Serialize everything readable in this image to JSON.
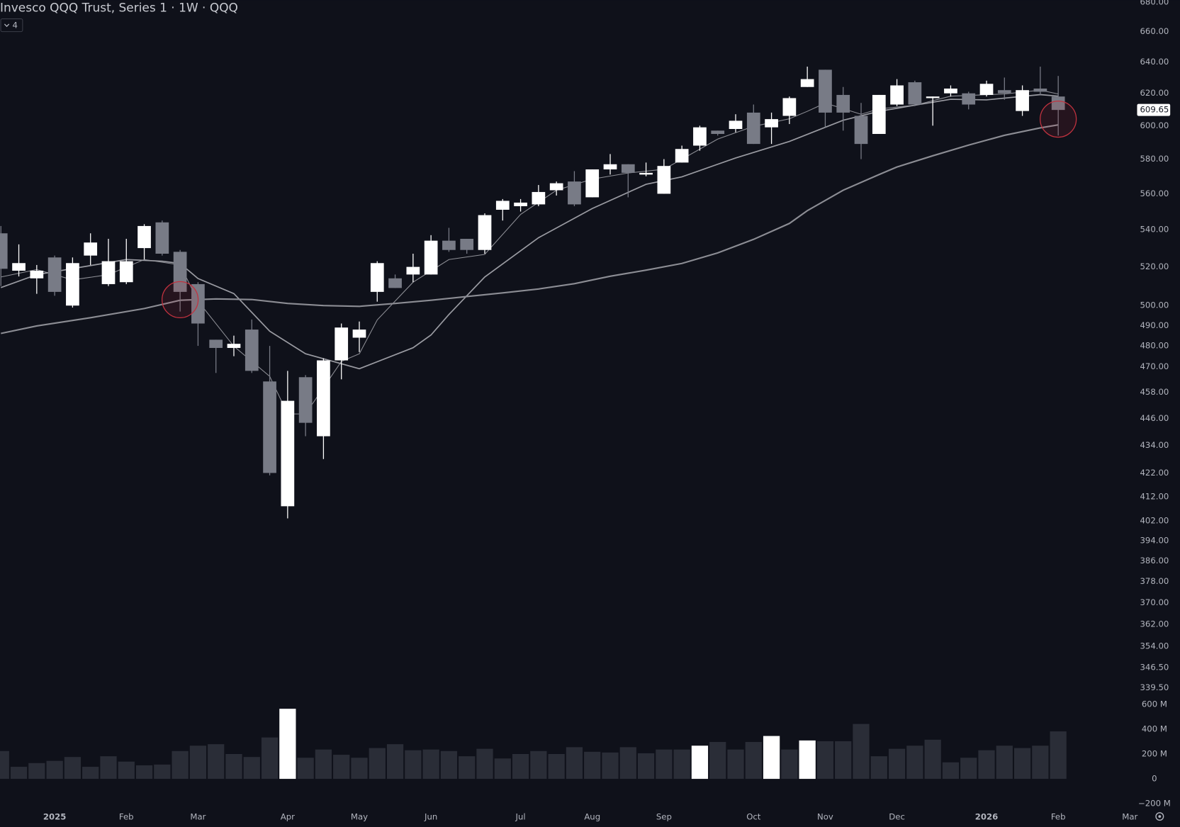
{
  "chart_data": {
    "type": "candlestick",
    "title": "Invesco QQQ Trust, Series 1 · 1W · QQQ",
    "indicator_toggle": "4",
    "log_scale": true,
    "grid": false,
    "up_color": "#ffffff",
    "down_color": "#787b86",
    "open": [
      538,
      518,
      514,
      525,
      500,
      526,
      511,
      512,
      530,
      544,
      528,
      511,
      483,
      479,
      488,
      463,
      408,
      465,
      438,
      473,
      484,
      507,
      514,
      516,
      516,
      534,
      535,
      529,
      551,
      553,
      554,
      562,
      567,
      558,
      574,
      577,
      571,
      560,
      578,
      588,
      597,
      598,
      608,
      599,
      606,
      624,
      635,
      619,
      606,
      595,
      613,
      627,
      617,
      620,
      620,
      619,
      622,
      609,
      623,
      618
    ],
    "high": [
      542,
      532,
      521,
      526,
      525,
      538,
      535,
      535,
      543,
      545,
      529,
      512,
      483,
      485,
      493,
      480,
      468,
      466,
      474,
      491,
      492,
      523,
      516,
      527,
      537,
      541,
      535,
      549,
      557,
      557,
      565,
      567,
      573,
      574,
      583,
      577,
      578,
      580,
      588,
      600,
      597,
      607,
      613,
      608,
      618,
      637,
      635,
      624,
      614,
      619,
      629,
      628,
      618,
      625,
      621,
      628,
      630,
      625,
      637,
      631
    ],
    "low": [
      510,
      515,
      506,
      505,
      499,
      521,
      510,
      511,
      524,
      526,
      497,
      480,
      467,
      475,
      467,
      421,
      403,
      438,
      428,
      464,
      477,
      502,
      509,
      512,
      516,
      528,
      527,
      527,
      545,
      550,
      553,
      559,
      553,
      558,
      571,
      558,
      570,
      560,
      578,
      585,
      594,
      596,
      589,
      589,
      601,
      624,
      599,
      597,
      580,
      595,
      612,
      612,
      600,
      618,
      610,
      618,
      616,
      606,
      619,
      594
    ],
    "close": [
      519,
      522,
      518,
      507,
      522,
      533,
      523,
      523,
      542,
      527,
      507,
      491,
      479,
      481,
      468,
      422,
      454,
      444,
      473,
      489,
      488,
      522,
      509,
      520,
      534,
      529,
      529,
      548,
      556,
      555,
      561,
      566,
      554,
      574,
      577,
      572,
      572,
      576,
      586,
      599,
      595,
      603,
      589,
      604,
      617,
      629,
      608,
      608,
      589,
      619,
      625,
      613,
      618,
      623,
      613,
      626,
      620,
      622,
      621,
      609.65
    ],
    "ma": [
      {
        "color": "#8e8f96",
        "width": 1,
        "x": [
          0,
          2,
          4,
          6,
          8,
          10,
          11,
          12,
          13,
          15,
          16,
          17,
          19,
          20,
          21,
          23,
          25,
          27,
          29,
          31,
          33,
          35,
          37,
          40,
          42,
          44,
          45,
          46,
          48,
          49,
          51,
          53,
          56,
          58,
          59
        ],
        "values": [
          514.7,
          518.6,
          513.2,
          515.9,
          523.9,
          521.0,
          502.3,
          490.9,
          479.8,
          465.4,
          448.0,
          448.0,
          472.5,
          476.2,
          492.8,
          512.0,
          523.9,
          526.6,
          548.4,
          562.0,
          568.4,
          571.9,
          574.1,
          591.9,
          599.6,
          604.2,
          608.8,
          613.9,
          607.0,
          610.3,
          612.6,
          618.2,
          619.6,
          622.0,
          619.6
        ]
      },
      {
        "color": "#9a9ba2",
        "width": 1.6,
        "x": [
          0,
          2,
          5,
          7,
          9,
          10,
          11,
          13,
          15,
          17,
          20,
          23,
          24,
          25,
          27,
          30,
          33,
          36,
          38,
          41,
          44,
          47,
          49,
          51,
          53,
          55,
          58,
          59
        ],
        "values": [
          509.2,
          515.9,
          520.7,
          523.9,
          523.0,
          521.8,
          513.9,
          506.1,
          487.2,
          476.2,
          469.0,
          479.1,
          485.3,
          495.5,
          514.7,
          535.6,
          551.7,
          565.4,
          569.7,
          580.7,
          590.5,
          603.3,
          608.8,
          612.6,
          616.3,
          615.9,
          619.2,
          618.2
        ]
      },
      {
        "color": "#8c8d94",
        "width": 2,
        "x": [
          0,
          2,
          5,
          8,
          10,
          12,
          14,
          16,
          18,
          20,
          22,
          24,
          26,
          28,
          30,
          32,
          34,
          36,
          38,
          40,
          42,
          44,
          45,
          47,
          49,
          50,
          52,
          54,
          56,
          58,
          59
        ],
        "values": [
          486.1,
          489.8,
          493.9,
          498.5,
          502.7,
          503.4,
          503.1,
          501.1,
          500.0,
          499.6,
          501.1,
          502.7,
          504.6,
          506.5,
          508.5,
          511.2,
          515.1,
          518.3,
          521.8,
          527.4,
          534.7,
          543.4,
          550.5,
          562.0,
          571.0,
          575.4,
          582.0,
          588.3,
          594.2,
          598.7,
          600.5
        ]
      }
    ],
    "markers": [
      {
        "x": 10,
        "y": 503
      },
      {
        "x": 59,
        "y": 604
      }
    ],
    "marker_color": "#c2323f",
    "xlim": [
      -0.05,
      63.15
    ],
    "xticks": [
      {
        "value": 3,
        "label": "2025",
        "bold": true
      },
      {
        "value": 7,
        "label": "Feb"
      },
      {
        "value": 11,
        "label": "Mar"
      },
      {
        "value": 16,
        "label": "Apr"
      },
      {
        "value": 20,
        "label": "May"
      },
      {
        "value": 24,
        "label": "Jun"
      },
      {
        "value": 29,
        "label": "Jul"
      },
      {
        "value": 33,
        "label": "Aug"
      },
      {
        "value": 37,
        "label": "Sep"
      },
      {
        "value": 42,
        "label": "Oct"
      },
      {
        "value": 46,
        "label": "Nov"
      },
      {
        "value": 50,
        "label": "Dec"
      },
      {
        "value": 55,
        "label": "2026",
        "bold": true
      },
      {
        "value": 59,
        "label": "Feb"
      },
      {
        "value": 63,
        "label": "Mar"
      }
    ],
    "ylim": [
      336.6,
      681.5
    ],
    "yticks": [
      {
        "value": 680,
        "label": "680.00"
      },
      {
        "value": 660,
        "label": "660.00"
      },
      {
        "value": 640,
        "label": "640.00"
      },
      {
        "value": 620,
        "label": "620.00"
      },
      {
        "value": 600,
        "label": "600.00"
      },
      {
        "value": 580,
        "label": "580.00"
      },
      {
        "value": 560,
        "label": "560.00"
      },
      {
        "value": 540,
        "label": "540.00"
      },
      {
        "value": 520,
        "label": "520.00"
      },
      {
        "value": 500,
        "label": "500.00"
      },
      {
        "value": 490,
        "label": "490.00"
      },
      {
        "value": 480,
        "label": "480.00"
      },
      {
        "value": 470,
        "label": "470.00"
      },
      {
        "value": 458,
        "label": "458.00"
      },
      {
        "value": 446,
        "label": "446.00"
      },
      {
        "value": 434,
        "label": "434.00"
      },
      {
        "value": 422,
        "label": "422.00"
      },
      {
        "value": 412,
        "label": "412.00"
      },
      {
        "value": 402,
        "label": "402.00"
      },
      {
        "value": 394,
        "label": "394.00"
      },
      {
        "value": 386,
        "label": "386.00"
      },
      {
        "value": 378,
        "label": "378.00"
      },
      {
        "value": 370,
        "label": "370.00"
      },
      {
        "value": 362,
        "label": "362.00"
      },
      {
        "value": 354,
        "label": "354.00"
      },
      {
        "value": 346.5,
        "label": "346.50"
      },
      {
        "value": 339.5,
        "label": "339.50"
      }
    ],
    "volume": {
      "values": [
        224,
        97,
        127,
        145,
        176,
        97,
        182,
        139,
        109,
        115,
        224,
        267,
        279,
        200,
        176,
        333,
        564,
        170,
        236,
        194,
        170,
        248,
        279,
        230,
        236,
        224,
        182,
        242,
        164,
        200,
        224,
        200,
        255,
        218,
        212,
        255,
        206,
        236,
        236,
        267,
        297,
        236,
        297,
        345,
        236,
        309,
        303,
        303,
        442,
        182,
        242,
        267,
        315,
        133,
        170,
        230,
        267,
        248,
        267,
        382
      ],
      "colors": [
        "#2a2d37",
        "#2a2d37",
        "#2a2d37",
        "#2a2d37",
        "#2a2d37",
        "#2a2d37",
        "#2a2d37",
        "#2a2d37",
        "#2a2d37",
        "#2a2d37",
        "#2a2d37",
        "#2a2d37",
        "#2a2d37",
        "#2a2d37",
        "#2a2d37",
        "#2a2d37",
        "#ffffff",
        "#2a2d37",
        "#2a2d37",
        "#2a2d37",
        "#2a2d37",
        "#2a2d37",
        "#2a2d37",
        "#2a2d37",
        "#2a2d37",
        "#2a2d37",
        "#2a2d37",
        "#2a2d37",
        "#2a2d37",
        "#2a2d37",
        "#2a2d37",
        "#2a2d37",
        "#2a2d37",
        "#2a2d37",
        "#2a2d37",
        "#2a2d37",
        "#2a2d37",
        "#2a2d37",
        "#2a2d37",
        "#ffffff",
        "#2a2d37",
        "#2a2d37",
        "#2a2d37",
        "#ffffff",
        "#2a2d37",
        "#ffffff",
        "#2a2d37",
        "#2a2d37",
        "#2a2d37",
        "#2a2d37",
        "#2a2d37",
        "#2a2d37",
        "#2a2d37",
        "#2a2d37",
        "#2a2d37",
        "#2a2d37",
        "#2a2d37",
        "#2a2d37",
        "#2a2d37",
        "#2a2d37"
      ],
      "ylim": [
        -242,
        636
      ],
      "yticks": [
        {
          "value": 600,
          "label": "600 M"
        },
        {
          "value": 400,
          "label": "400 M"
        },
        {
          "value": 200,
          "label": "200 M"
        },
        0,
        {
          "value": -200,
          "label": "−200 M"
        }
      ]
    }
  }
}
